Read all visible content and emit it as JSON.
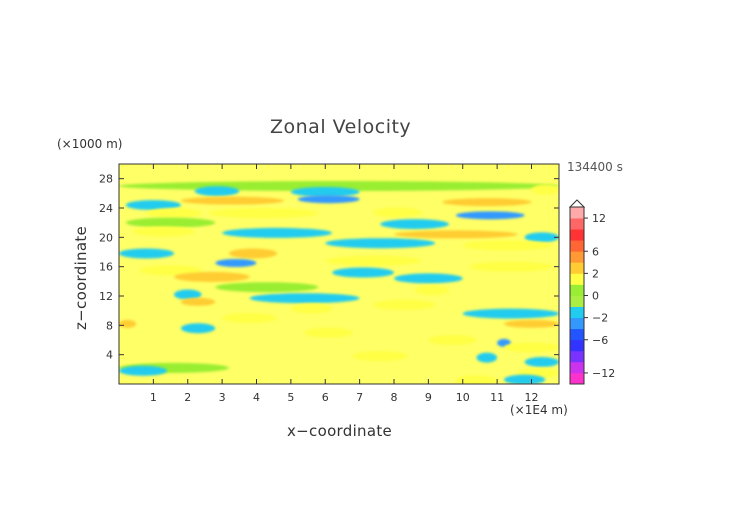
{
  "chart_data": {
    "type": "heatmap",
    "title": "Zonal Velocity",
    "xlabel": "x−coordinate",
    "ylabel": "z−coordinate",
    "x_unit_label": "(×1E4 m)",
    "y_unit_label": "(×1000 m)",
    "time_label": "134400 s",
    "xlim": [
      0,
      12.8
    ],
    "ylim": [
      0,
      30
    ],
    "x_ticks": [
      1,
      2,
      3,
      4,
      5,
      6,
      7,
      8,
      9,
      10,
      11,
      12
    ],
    "y_ticks": [
      4,
      8,
      12,
      16,
      20,
      24,
      28
    ],
    "colorbar": {
      "levels": [
        -14,
        -12,
        -10,
        -8,
        -6,
        -4,
        -2,
        -1,
        0,
        1,
        2,
        4,
        6,
        8,
        10,
        12,
        14
      ],
      "tick_labels": [
        "12",
        "6",
        "2",
        "0",
        "−2",
        "−6",
        "−12"
      ],
      "tick_values": [
        12,
        6,
        2,
        0,
        -2,
        -6,
        -12
      ],
      "colors": [
        "#ff33cc",
        "#cc33ee",
        "#7a33ff",
        "#3333ff",
        "#2255ff",
        "#3399ff",
        "#22ccee",
        "#aaee44",
        "#99ee33",
        "#ffff44",
        "#ffcc33",
        "#ff9933",
        "#ff6633",
        "#ff3333",
        "#ff6666",
        "#ffaaaa"
      ]
    },
    "bands": [
      {
        "z": 27,
        "x_start": 0.0,
        "x_end": 12.8,
        "value": 0.4
      },
      {
        "z": 26.3,
        "x_start": 2.2,
        "x_end": 3.5,
        "value": -1.8
      },
      {
        "z": 26.2,
        "x_start": 5.0,
        "x_end": 7.0,
        "value": -1.2
      },
      {
        "z": 26.5,
        "x_start": 12.0,
        "x_end": 12.8,
        "value": 1.5
      },
      {
        "z": 25.0,
        "x_start": 1.8,
        "x_end": 4.8,
        "value": 3.0
      },
      {
        "z": 25.2,
        "x_start": 5.2,
        "x_end": 7.0,
        "value": -2.5
      },
      {
        "z": 24.8,
        "x_start": 9.4,
        "x_end": 12.0,
        "value": 2.2
      },
      {
        "z": 24.4,
        "x_start": 0.2,
        "x_end": 1.8,
        "value": -1.2
      },
      {
        "z": 23.3,
        "x_start": 0.8,
        "x_end": 2.4,
        "value": 1.5
      },
      {
        "z": 23.3,
        "x_start": 2.6,
        "x_end": 5.8,
        "value": 1.8
      },
      {
        "z": 23.4,
        "x_start": 7.4,
        "x_end": 8.8,
        "value": 1.5
      },
      {
        "z": 23.0,
        "x_start": 9.8,
        "x_end": 11.8,
        "value": -2.6
      },
      {
        "z": 22.0,
        "x_start": 0.2,
        "x_end": 2.8,
        "value": 0.5
      },
      {
        "z": 21.8,
        "x_start": 7.6,
        "x_end": 9.6,
        "value": -1.8
      },
      {
        "z": 20.8,
        "x_start": 0.4,
        "x_end": 2.2,
        "value": 1.4
      },
      {
        "z": 20.6,
        "x_start": 3.0,
        "x_end": 6.2,
        "value": -1.3
      },
      {
        "z": 20.4,
        "x_start": 8.0,
        "x_end": 11.6,
        "value": 2.4
      },
      {
        "z": 20.0,
        "x_start": 11.8,
        "x_end": 12.8,
        "value": -1.2
      },
      {
        "z": 19.2,
        "x_start": 6.0,
        "x_end": 9.2,
        "value": -1.6
      },
      {
        "z": 18.9,
        "x_start": 10.0,
        "x_end": 12.6,
        "value": 1.3
      },
      {
        "z": 17.8,
        "x_start": 0.0,
        "x_end": 1.6,
        "value": -1.5
      },
      {
        "z": 17.8,
        "x_start": 3.2,
        "x_end": 4.6,
        "value": 2.0
      },
      {
        "z": 16.8,
        "x_start": 6.0,
        "x_end": 8.8,
        "value": 1.3
      },
      {
        "z": 16.5,
        "x_start": 2.8,
        "x_end": 4.0,
        "value": -2.2
      },
      {
        "z": 16.0,
        "x_start": 10.2,
        "x_end": 12.6,
        "value": 1.5
      },
      {
        "z": 15.5,
        "x_start": 0.6,
        "x_end": 2.4,
        "value": 1.6
      },
      {
        "z": 15.2,
        "x_start": 6.2,
        "x_end": 8.0,
        "value": -1.2
      },
      {
        "z": 14.6,
        "x_start": 1.6,
        "x_end": 3.8,
        "value": 2.0
      },
      {
        "z": 14.4,
        "x_start": 8.0,
        "x_end": 10.0,
        "value": -1.4
      },
      {
        "z": 13.2,
        "x_start": 2.8,
        "x_end": 5.8,
        "value": 0.5
      },
      {
        "z": 12.8,
        "x_start": 8.6,
        "x_end": 9.6,
        "value": 1.5
      },
      {
        "z": 12.2,
        "x_start": 1.6,
        "x_end": 2.4,
        "value": -1.1
      },
      {
        "z": 11.7,
        "x_start": 3.8,
        "x_end": 7.0,
        "value": -1.3
      },
      {
        "z": 11.2,
        "x_start": 1.8,
        "x_end": 2.8,
        "value": 2.2
      },
      {
        "z": 10.8,
        "x_start": 7.4,
        "x_end": 9.2,
        "value": 1.2
      },
      {
        "z": 10.3,
        "x_start": 5.0,
        "x_end": 6.2,
        "value": 1.2
      },
      {
        "z": 9.6,
        "x_start": 10.0,
        "x_end": 12.8,
        "value": -1.3
      },
      {
        "z": 9.0,
        "x_start": 3.0,
        "x_end": 4.6,
        "value": 1.1
      },
      {
        "z": 8.2,
        "x_start": 0.0,
        "x_end": 0.5,
        "value": 2.2
      },
      {
        "z": 8.2,
        "x_start": 11.2,
        "x_end": 12.8,
        "value": 2.5
      },
      {
        "z": 7.6,
        "x_start": 1.8,
        "x_end": 2.8,
        "value": -1.1
      },
      {
        "z": 7.0,
        "x_start": 5.4,
        "x_end": 6.8,
        "value": 1.2
      },
      {
        "z": 6.0,
        "x_start": 9.0,
        "x_end": 10.4,
        "value": 1.1
      },
      {
        "z": 5.6,
        "x_start": 11.0,
        "x_end": 11.4,
        "value": -2.6
      },
      {
        "z": 5.0,
        "x_start": 11.2,
        "x_end": 12.8,
        "value": 1.8
      },
      {
        "z": 3.8,
        "x_start": 6.8,
        "x_end": 8.4,
        "value": 1.2
      },
      {
        "z": 3.6,
        "x_start": 10.4,
        "x_end": 11.0,
        "value": -1.2
      },
      {
        "z": 3.0,
        "x_start": 11.8,
        "x_end": 12.8,
        "value": -1.5
      },
      {
        "z": 2.2,
        "x_start": 0.0,
        "x_end": 3.2,
        "value": 0.4
      },
      {
        "z": 1.8,
        "x_start": 0.0,
        "x_end": 1.4,
        "value": -1.2
      },
      {
        "z": 1.5,
        "x_start": 11.6,
        "x_end": 12.8,
        "value": 1.5
      },
      {
        "z": 0.5,
        "x_start": 9.8,
        "x_end": 11.0,
        "value": 1.6
      },
      {
        "z": 0.6,
        "x_start": 11.2,
        "x_end": 12.4,
        "value": -1.5
      }
    ]
  }
}
